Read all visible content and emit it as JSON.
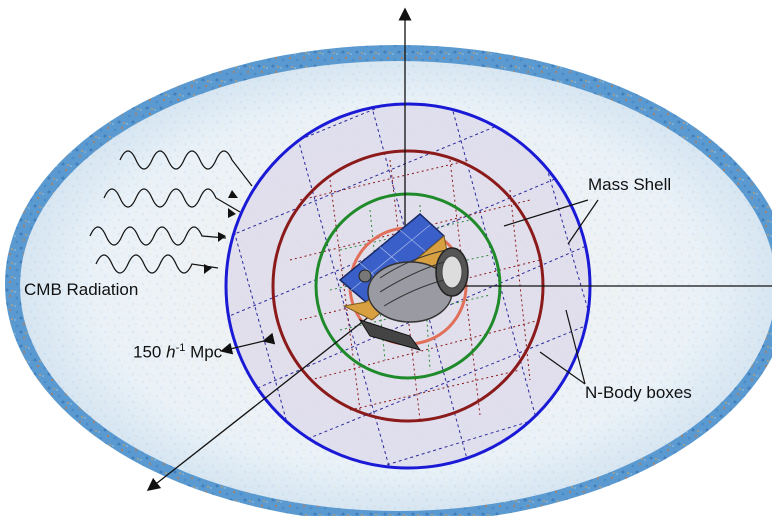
{
  "labels": {
    "cmb": "CMB Radiation",
    "mass_shell": "Mass Shell",
    "nbody": "N-Body boxes",
    "scale_prefix": "150 ",
    "scale_h": "h",
    "scale_exp": "-1",
    "scale_suffix": " Mpc"
  },
  "colors": {
    "shell_outer": "#1a1ad6",
    "shell_middle": "#8b1a1a",
    "shell_inner": "#1f8a2a",
    "shell_core": "#e0705a",
    "grid_blue": "#2a2a9a",
    "grid_red": "#8a1a1a",
    "grid_green": "#2a8a3a",
    "sky_fill": "#eef4f8",
    "cmb_band_blue": "#3a7fc0",
    "cmb_band_orange": "#d88a3a"
  },
  "icons": {
    "telescope": "euclid-satellite-icon",
    "waves": "radiation-wave-icon"
  }
}
